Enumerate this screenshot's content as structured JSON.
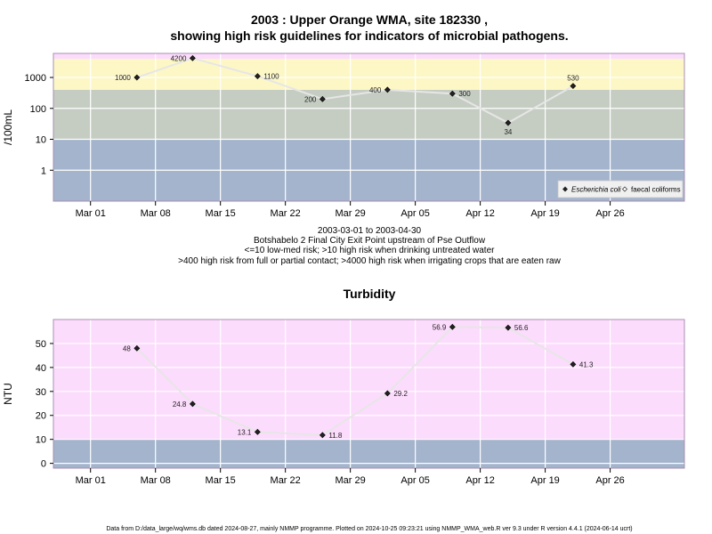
{
  "chart_data": [
    {
      "type": "line",
      "title_line1": "2003 : Upper Orange WMA, site 182330 ,",
      "title_line2": "showing high risk guidelines for indicators of microbial pathogens.",
      "ylabel": "/100mL",
      "yscale": "log10",
      "ylim": [
        0.1,
        6000
      ],
      "yticks": [
        1,
        10,
        100,
        1000
      ],
      "ytick_labels": [
        "1",
        "10",
        "100",
        "1000"
      ],
      "x_range": [
        "2003-02-25",
        "2003-05-04"
      ],
      "x_ticks": [
        {
          "date": "2003-03-01",
          "label": "Mar 01"
        },
        {
          "date": "2003-03-08",
          "label": "Mar 08"
        },
        {
          "date": "2003-03-15",
          "label": "Mar 15"
        },
        {
          "date": "2003-03-22",
          "label": "Mar 22"
        },
        {
          "date": "2003-03-29",
          "label": "Mar 29"
        },
        {
          "date": "2003-04-05",
          "label": "Apr 05"
        },
        {
          "date": "2003-04-12",
          "label": "Apr 12"
        },
        {
          "date": "2003-04-19",
          "label": "Apr 19"
        },
        {
          "date": "2003-04-26",
          "label": "Apr 26"
        }
      ],
      "bands": [
        {
          "from": 0.1,
          "to": 10,
          "color": "#a3b4cc"
        },
        {
          "from": 10,
          "to": 400,
          "color": "#c5cdc2"
        },
        {
          "from": 400,
          "to": 4000,
          "color": "#fdf7c6"
        },
        {
          "from": 4000,
          "to": 6000,
          "color": "#fcdcfc"
        }
      ],
      "series": [
        {
          "name": "Escherichia coli",
          "points": [
            {
              "date": "2003-03-06",
              "value": 1000,
              "label": "1000",
              "pos": "left"
            },
            {
              "date": "2003-03-12",
              "value": 4200,
              "label": "4200",
              "pos": "left"
            },
            {
              "date": "2003-03-19",
              "value": 1100,
              "label": "1100",
              "pos": "right"
            },
            {
              "date": "2003-03-26",
              "value": 200,
              "label": "200",
              "pos": "left"
            },
            {
              "date": "2003-04-02",
              "value": 400,
              "label": "400",
              "pos": "left"
            },
            {
              "date": "2003-04-09",
              "value": 300,
              "label": "300",
              "pos": "right"
            },
            {
              "date": "2003-04-15",
              "value": 34,
              "label": "34",
              "pos": "below"
            },
            {
              "date": "2003-04-22",
              "value": 530,
              "label": "530",
              "pos": "above"
            }
          ]
        }
      ],
      "legend": {
        "placement": "bottom-right",
        "items": [
          {
            "label": "Escherichia coli",
            "marker": "filled-diamond",
            "italic": true
          },
          {
            "label": "faecal coliforms",
            "marker": "open-diamond",
            "italic": false
          }
        ]
      },
      "caption": [
        "2003-03-01 to 2003-04-30",
        "Botshabelo 2 Final City Exit Point upstream of Pse Outflow",
        "<=10 low-med risk; >10 high risk when drinking untreated water",
        ">400 high risk from full or partial contact; >4000 high risk when irrigating crops that are eaten raw"
      ]
    },
    {
      "type": "line",
      "title": "Turbidity",
      "ylabel": "NTU",
      "ylim": [
        -2,
        60
      ],
      "yticks": [
        0,
        10,
        20,
        30,
        40,
        50
      ],
      "ytick_labels": [
        "0",
        "10",
        "20",
        "30",
        "40",
        "50"
      ],
      "x_range": [
        "2003-02-25",
        "2003-05-04"
      ],
      "x_ticks": [
        {
          "date": "2003-03-01",
          "label": "Mar 01"
        },
        {
          "date": "2003-03-08",
          "label": "Mar 08"
        },
        {
          "date": "2003-03-15",
          "label": "Mar 15"
        },
        {
          "date": "2003-03-22",
          "label": "Mar 22"
        },
        {
          "date": "2003-03-29",
          "label": "Mar 29"
        },
        {
          "date": "2003-04-05",
          "label": "Apr 05"
        },
        {
          "date": "2003-04-12",
          "label": "Apr 12"
        },
        {
          "date": "2003-04-19",
          "label": "Apr 19"
        },
        {
          "date": "2003-04-26",
          "label": "Apr 26"
        }
      ],
      "bands": [
        {
          "from": -2,
          "to": 10,
          "color": "#a3b4cc"
        },
        {
          "from": 10,
          "to": 60,
          "color": "#fcdcfc"
        }
      ],
      "series": [
        {
          "points": [
            {
              "date": "2003-03-06",
              "value": 48,
              "label": "48",
              "pos": "left"
            },
            {
              "date": "2003-03-12",
              "value": 24.8,
              "label": "24.8",
              "pos": "left"
            },
            {
              "date": "2003-03-19",
              "value": 13.1,
              "label": "13.1",
              "pos": "left"
            },
            {
              "date": "2003-03-26",
              "value": 11.8,
              "label": "11.8",
              "pos": "right"
            },
            {
              "date": "2003-04-02",
              "value": 29.2,
              "label": "29.2",
              "pos": "right"
            },
            {
              "date": "2003-04-09",
              "value": 56.9,
              "label": "56.9",
              "pos": "left"
            },
            {
              "date": "2003-04-15",
              "value": 56.6,
              "label": "56.6",
              "pos": "right"
            },
            {
              "date": "2003-04-22",
              "value": 41.3,
              "label": "41.3",
              "pos": "right"
            }
          ]
        }
      ]
    }
  ],
  "footer": "Data from D:/data_large/wq/wms.db dated 2024-08-27, mainly NMMP programme. Plotted on 2024-10-25 09:23:21 using NMMP_WMA_web.R ver 9.3 under R version 4.4.1 (2024-06-14 ucrt)"
}
